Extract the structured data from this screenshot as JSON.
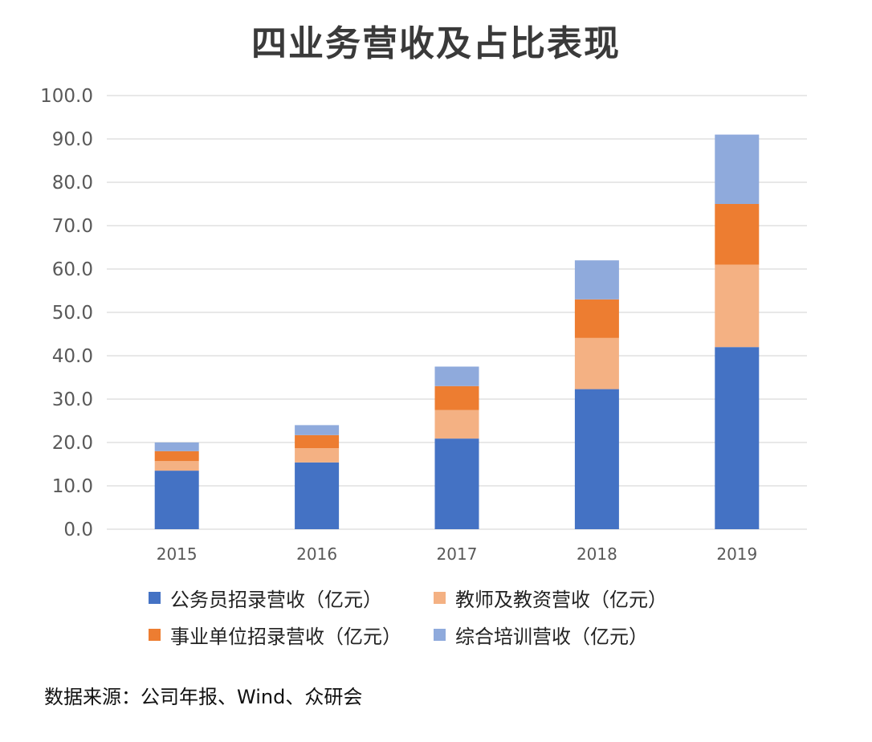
{
  "title": "四业务营收及占比表现",
  "source": "数据来源：公司年报、Wind、众研会",
  "colors": {
    "series": [
      "#4472c4",
      "#f4b183",
      "#ed7d31",
      "#8faadc"
    ],
    "grid": "#d0d0d0",
    "tick": "#595959"
  },
  "chart_data": {
    "type": "bar",
    "stacked": true,
    "categories": [
      "2015",
      "2016",
      "2017",
      "2018",
      "2019"
    ],
    "series": [
      {
        "name": "公务员招录营收（亿元）",
        "values": [
          13.5,
          15.4,
          20.9,
          32.3,
          42.0
        ]
      },
      {
        "name": "教师及教资营收（亿元）",
        "values": [
          2.2,
          3.3,
          6.6,
          11.8,
          19.0
        ]
      },
      {
        "name": "事业单位招录营收（亿元）",
        "values": [
          2.3,
          3.0,
          5.5,
          8.9,
          14.0
        ]
      },
      {
        "name": "综合培训营收（亿元）",
        "values": [
          2.0,
          2.3,
          4.5,
          9.0,
          16.0
        ]
      }
    ],
    "ylim": [
      0,
      100
    ],
    "yticks": [
      "0.0",
      "10.0",
      "20.0",
      "30.0",
      "40.0",
      "50.0",
      "60.0",
      "70.0",
      "80.0",
      "90.0",
      "100.0"
    ],
    "grid": true,
    "legend_position": "bottom"
  }
}
